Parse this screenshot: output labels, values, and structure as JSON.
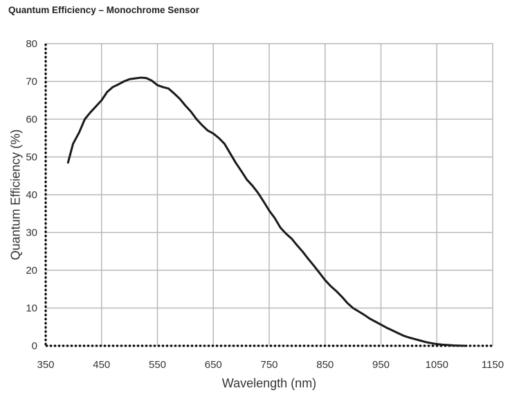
{
  "chart_data": {
    "type": "line",
    "title": "Quantum Efficiency – Monochrome Sensor",
    "xlabel": "Wavelength (nm)",
    "ylabel": "Quantum Efficiency (%)",
    "xlim": [
      350,
      1150
    ],
    "ylim": [
      0,
      80
    ],
    "xticks": [
      350,
      450,
      550,
      650,
      750,
      850,
      950,
      1050,
      1150
    ],
    "yticks": [
      0,
      10,
      20,
      30,
      40,
      50,
      60,
      70,
      80
    ],
    "grid": true,
    "line_color": "#1a1a1a",
    "series": [
      {
        "x": [
          390,
          399,
          410,
          420,
          430,
          440,
          450,
          460,
          470,
          480,
          490,
          500,
          510,
          520,
          530,
          540,
          550,
          560,
          570,
          580,
          590,
          600,
          610,
          620,
          630,
          640,
          650,
          660,
          670,
          680,
          690,
          700,
          710,
          720,
          730,
          740,
          750,
          760,
          770,
          780,
          790,
          800,
          810,
          820,
          830,
          840,
          850,
          860,
          870,
          880,
          890,
          900,
          910,
          920,
          930,
          940,
          950,
          960,
          970,
          980,
          990,
          1000,
          1010,
          1020,
          1030,
          1040,
          1050,
          1060,
          1070,
          1080,
          1090,
          1100
        ],
        "y": [
          48.5,
          53.5,
          56.5,
          60,
          61.8,
          63.4,
          65,
          67.2,
          68.5,
          69.2,
          70,
          70.6,
          70.8,
          71,
          70.9,
          70.2,
          69,
          68.5,
          68.1,
          66.8,
          65.4,
          63.6,
          62,
          60,
          58.4,
          57,
          56.2,
          55,
          53.5,
          51,
          48.5,
          46.3,
          44,
          42.4,
          40.5,
          38.2,
          35.8,
          33.8,
          31.3,
          29.7,
          28.4,
          26.6,
          24.9,
          23,
          21.2,
          19.3,
          17.4,
          15.8,
          14.5,
          13,
          11.3,
          10,
          9.1,
          8.2,
          7.2,
          6.4,
          5.6,
          4.8,
          4.1,
          3.4,
          2.7,
          2.2,
          1.8,
          1.4,
          1.0,
          0.7,
          0.45,
          0.3,
          0.2,
          0.1,
          0.05,
          0
        ]
      }
    ]
  }
}
